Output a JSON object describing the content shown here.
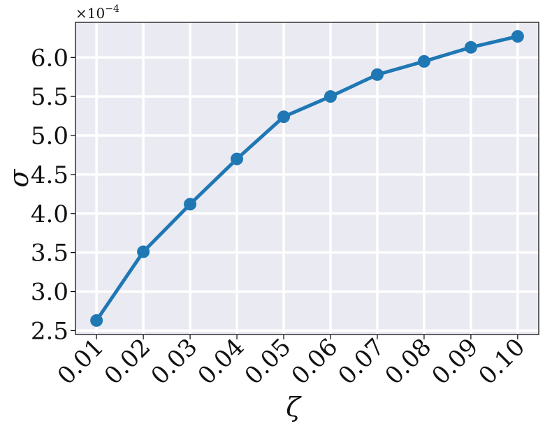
{
  "chart_data": {
    "type": "line",
    "x": [
      0.01,
      0.02,
      0.03,
      0.04,
      0.05,
      0.06,
      0.07,
      0.08,
      0.09,
      0.1
    ],
    "x_tick_labels": [
      "0.01",
      "0.02",
      "0.03",
      "0.04",
      "0.05",
      "0.06",
      "0.07",
      "0.08",
      "0.09",
      "0.10"
    ],
    "series": [
      {
        "values": [
          2.63,
          3.51,
          4.12,
          4.7,
          5.24,
          5.5,
          5.78,
          5.95,
          6.13,
          6.27
        ],
        "color": "#1f77b4"
      }
    ],
    "xlabel": "ζ",
    "ylabel": "σ",
    "y_multiplier": "×10",
    "y_multiplier_exponent": "−4",
    "y_ticks": [
      2.5,
      3.0,
      3.5,
      4.0,
      4.5,
      5.0,
      5.5,
      6.0
    ],
    "y_tick_labels": [
      "2.5",
      "3.0",
      "3.5",
      "4.0",
      "4.5",
      "5.0",
      "5.5",
      "6.0"
    ],
    "ylim": [
      2.45,
      6.45
    ],
    "xlim": [
      0.0055,
      0.1045
    ],
    "grid": true,
    "legend": false,
    "colors": {
      "background": "#eaeaf2",
      "grid": "#ffffff",
      "line": "#1f77b4"
    }
  }
}
